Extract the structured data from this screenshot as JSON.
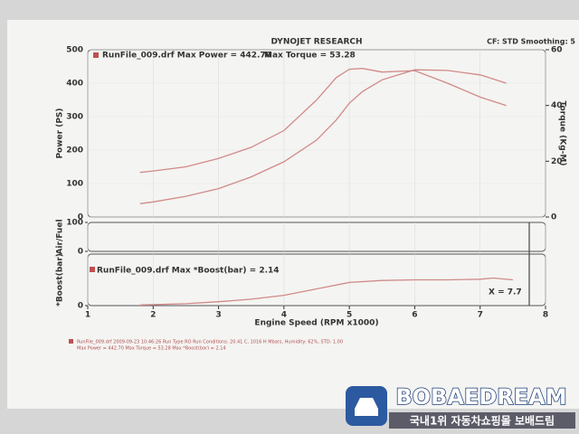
{
  "header": {
    "title": "DYNOJET RESEARCH",
    "settings": "CF: STD  Smoothing: 5"
  },
  "chart_data": [
    {
      "type": "line",
      "legend_power": "RunFile_009.drf Max Power = 442.70",
      "legend_torque": "Max Torque = 53.28",
      "ylabel": "Power (PS)",
      "y2label": "Torque (Kg-M)",
      "x": [
        1.8,
        2,
        2.5,
        3,
        3.5,
        4,
        4.5,
        4.8,
        5,
        5.2,
        5.5,
        6,
        6.5,
        7,
        7.4
      ],
      "xlim": [
        1,
        8
      ],
      "ylim": [
        0,
        500
      ],
      "yticks": [
        0,
        100,
        200,
        300,
        400,
        500
      ],
      "y2lim": [
        0,
        60
      ],
      "y2ticks": [
        0,
        20,
        40,
        60
      ],
      "series": [
        {
          "name": "Power",
          "color": "#d08a88",
          "values": [
            40,
            45,
            62,
            85,
            120,
            165,
            230,
            290,
            340,
            375,
            410,
            440,
            438,
            425,
            400
          ]
        },
        {
          "name": "Torque",
          "color": "#d08a88",
          "axis": "y2",
          "values": [
            16,
            16.5,
            18,
            21,
            25,
            31,
            42,
            50,
            53,
            53.28,
            52,
            52.5,
            48,
            43,
            40
          ]
        }
      ]
    },
    {
      "type": "line",
      "ylabel": "Air/Fuel",
      "xlim": [
        1,
        8
      ],
      "ylim": [
        0,
        100
      ],
      "yticks": [
        0,
        100
      ],
      "series": []
    },
    {
      "type": "line",
      "legend": "RunFile_009.drf Max *Boost(bar) = 2.14",
      "ylabel": "*Boost(bar)",
      "xlabel": "Engine Speed (RPM x1000)",
      "annotation": "X = 7.7",
      "x": [
        1.8,
        2.5,
        3,
        3.5,
        4,
        4.5,
        5,
        5.5,
        6,
        6.5,
        7,
        7.2,
        7.5
      ],
      "xlim": [
        1,
        8
      ],
      "xticks": [
        1,
        2,
        3,
        4,
        5,
        6,
        7,
        8
      ],
      "ylim": [
        0,
        4
      ],
      "yticks": [
        0
      ],
      "series": [
        {
          "name": "Boost",
          "color": "#d08a88",
          "values": [
            0.05,
            0.15,
            0.3,
            0.5,
            0.8,
            1.3,
            1.8,
            1.95,
            2.0,
            2.0,
            2.05,
            2.14,
            2.0
          ]
        }
      ]
    }
  ],
  "footer": {
    "line1": "RunFile_009.drf  2009-09-23 10:46:26  Run Type RO  Run Conditions: 20.41 C, 1016 H Mbars, Humidity: 62%, STD: 1.00",
    "line2": "Max Power = 442.70  Max Torque = 53.28  Max *Boost(bar) = 2.14"
  },
  "watermark": {
    "brand": "BOBAEDREAM",
    "tagline": "국내1위 자동차쇼핑몰 보배드림"
  }
}
